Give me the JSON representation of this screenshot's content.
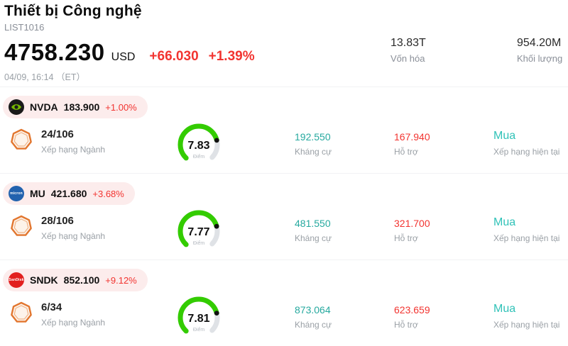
{
  "header": {
    "title": "Thiết bị Công nghệ",
    "list_id": "LIST1016",
    "price": "4758.230",
    "currency": "USD",
    "change": "+66.030",
    "change_pct": "+1.39%",
    "datetime": "04/09, 16:14 （ET）",
    "market_cap": {
      "value": "13.83T",
      "label": "Vốn hóa"
    },
    "volume": {
      "value": "954.20M",
      "label": "Khối lượng"
    }
  },
  "labels": {
    "rank": "Xếp hạng Ngành",
    "score": "Điểm",
    "resistance": "Kháng cự",
    "support": "Hỗ trợ",
    "rating": "Xếp hạng hiện tại"
  },
  "colors": {
    "positive_change_red": "#f23430",
    "resistance_teal": "#26a99f",
    "rating_teal": "#30c2b8",
    "gauge_green": "#33cc00",
    "gauge_track_gray": "#dfe2e6",
    "pill_background": "#fcecec",
    "muted_gray": "#8a8f98",
    "badge_orange": "#e2762f",
    "nvda_green": "#76b900",
    "micron_blue": "#2262ae",
    "sandisk_red": "#e2201f"
  },
  "stocks": [
    {
      "ticker": "NVDA",
      "price": "183.900",
      "change_pct": "+1.00%",
      "rank": "24/106",
      "score": "7.83",
      "score_value": 7.83,
      "resistance": "192.550",
      "support": "167.940",
      "rating": "Mua",
      "logo_text": ""
    },
    {
      "ticker": "MU",
      "price": "421.680",
      "change_pct": "+3.68%",
      "rank": "28/106",
      "score": "7.77",
      "score_value": 7.77,
      "resistance": "481.550",
      "support": "321.700",
      "rating": "Mua",
      "logo_text": "micron"
    },
    {
      "ticker": "SNDK",
      "price": "852.100",
      "change_pct": "+9.12%",
      "rank": "6/34",
      "score": "7.81",
      "score_value": 7.81,
      "resistance": "873.064",
      "support": "623.659",
      "rating": "Mua",
      "logo_text": "SanDisk"
    }
  ]
}
